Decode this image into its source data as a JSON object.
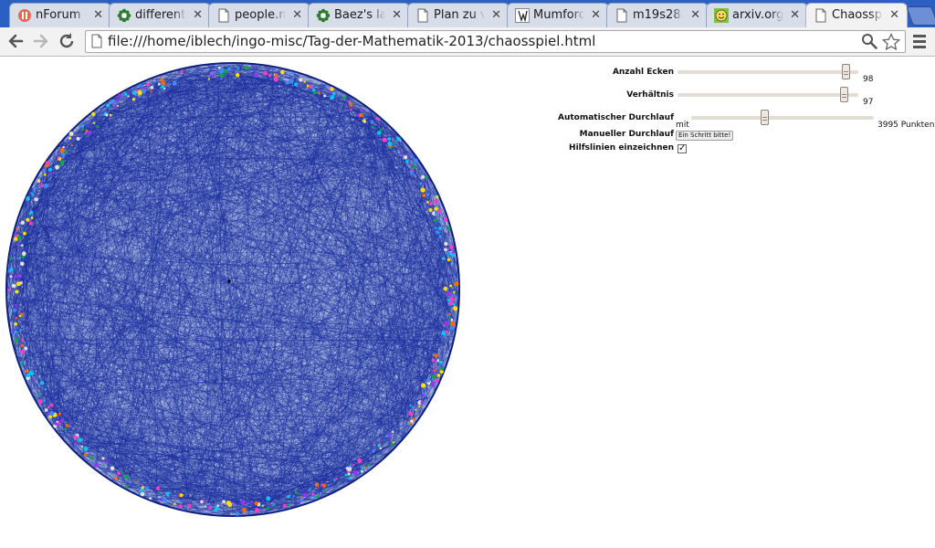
{
  "tabs": [
    {
      "title": "nForum -",
      "icon": "nforum-icon",
      "color": "#e0574a"
    },
    {
      "title": "different",
      "icon": "nlab-flower-icon",
      "color": "#2e7d2e"
    },
    {
      "title": "people.m",
      "icon": "page-icon",
      "color": "#666666"
    },
    {
      "title": "Baez's la",
      "icon": "nlab-flower-icon",
      "color": "#2e7d2e"
    },
    {
      "title": "Plan zu v",
      "icon": "page-icon",
      "color": "#666666"
    },
    {
      "title": "Mumford",
      "icon": "wikipedia-icon",
      "color": "#333333"
    },
    {
      "title": "m19s28.",
      "icon": "page-icon",
      "color": "#666666"
    },
    {
      "title": "arxiv.org/",
      "icon": "smiley-icon",
      "color": "#7cc43a"
    },
    {
      "title": "Chaossp",
      "icon": "page-icon",
      "color": "#666666",
      "active": true
    }
  ],
  "address": {
    "url": "file:///home/iblech/ingo-misc/Tag-der-Mathematik-2013/chaosspiel.html"
  },
  "controls": {
    "corners": {
      "label": "Anzahl Ecken",
      "value": "98",
      "fraction": 0.95
    },
    "ratio": {
      "label": "Verhältnis",
      "value": "97",
      "fraction": 0.94
    },
    "auto": {
      "label": "Automatischer Durchlauf",
      "left_text": "mit",
      "right_text": "3995 Punkten",
      "fraction": 0.4
    },
    "manual": {
      "label": "Manueller Durchlauf",
      "button": "Ein Schritt bitte!"
    },
    "helplines": {
      "label": "Hilfslinien einzeichnen",
      "checked": true
    }
  },
  "colors": {
    "lines": "#1c2d9e",
    "circle": "#0d1f7a",
    "accent": "#2c5fc2"
  }
}
